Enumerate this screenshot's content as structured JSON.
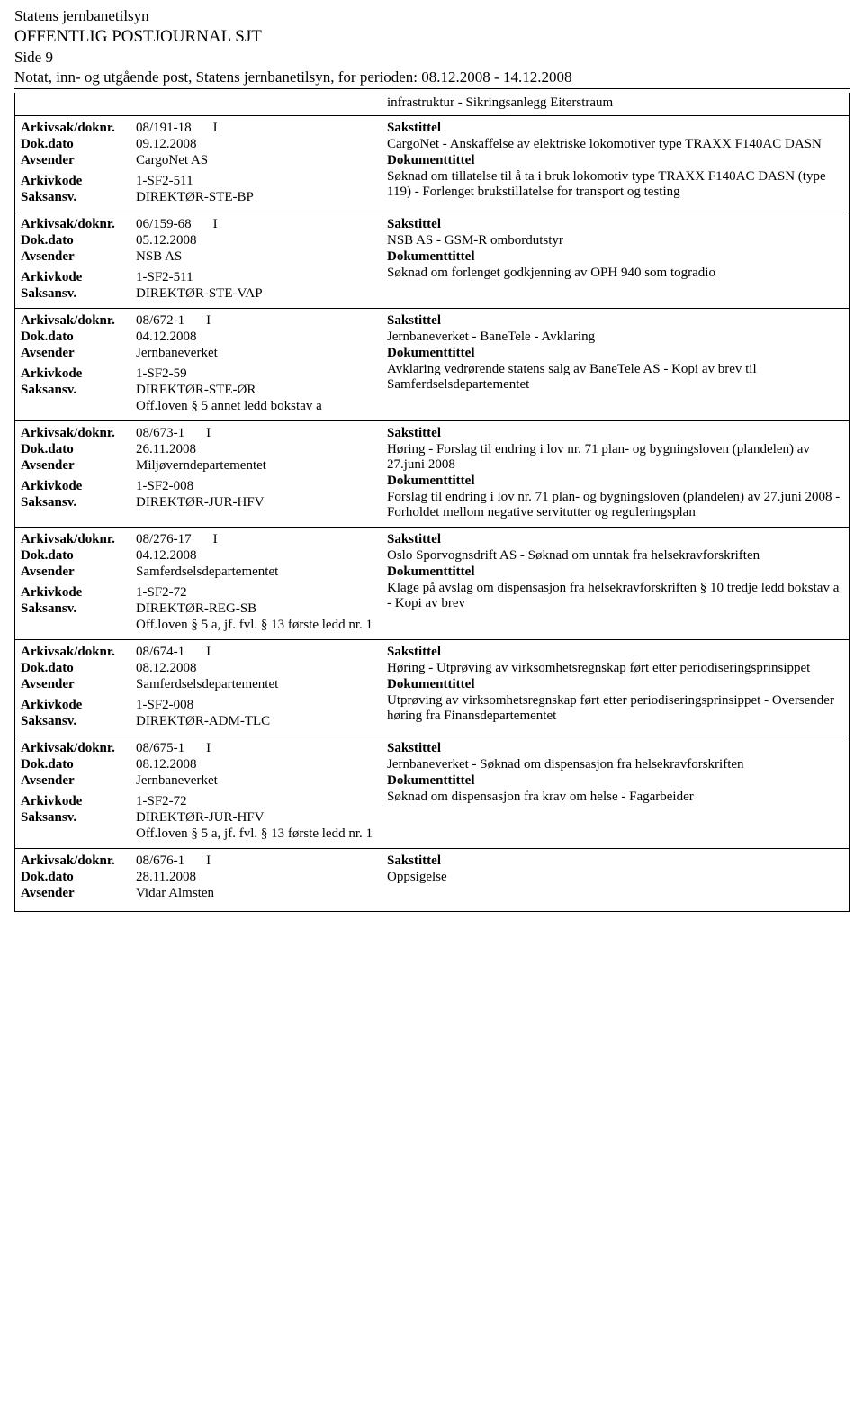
{
  "header": {
    "line1": "Statens jernbanetilsyn",
    "line2": "OFFENTLIG POSTJOURNAL SJT",
    "line3": "Side 9",
    "line4": "Notat, inn- og utgående post, Statens jernbanetilsyn, for perioden: 08.12.2008 - 14.12.2008"
  },
  "labels": {
    "arkivsak": "Arkivsak/doknr.",
    "dokdato": "Dok.dato",
    "avsender": "Avsender",
    "arkivkode": "Arkivkode",
    "saksansv": "Saksansv.",
    "sakstittel": "Sakstittel",
    "dokumenttittel": "Dokumenttittel"
  },
  "carryover": "infrastruktur - Sikringsanlegg Eiterstraum",
  "records": [
    {
      "arkivsak": "08/191-18",
      "marker": "I",
      "dokdato": "09.12.2008",
      "avsender": "CargoNet AS",
      "arkivkode": "1-SF2-511",
      "saksansv": "DIREKTØR-STE-BP",
      "saksansv_extra": "",
      "sakstittel": "CargoNet - Anskaffelse av elektriske lokomotiver type TRAXX F140AC DASN",
      "dokumenttittel": "Søknad om tillatelse til å ta i bruk lokomotiv type TRAXX F140AC DASN (type 119) - Forlenget brukstillatelse for transport og testing"
    },
    {
      "arkivsak": "06/159-68",
      "marker": "I",
      "dokdato": "05.12.2008",
      "avsender": "NSB AS",
      "arkivkode": "1-SF2-511",
      "saksansv": "DIREKTØR-STE-VAP",
      "saksansv_extra": "",
      "sakstittel": "NSB AS - GSM-R ombordutstyr",
      "dokumenttittel": "Søknad om forlenget godkjenning av OPH 940 som togradio"
    },
    {
      "arkivsak": "08/672-1",
      "marker": "I",
      "dokdato": "04.12.2008",
      "avsender": "Jernbaneverket",
      "arkivkode": "1-SF2-59",
      "saksansv": "DIREKTØR-STE-ØR",
      "saksansv_extra": "Off.loven § 5 annet ledd bokstav a",
      "sakstittel": "Jernbaneverket - BaneTele - Avklaring",
      "dokumenttittel": "Avklaring vedrørende statens salg av BaneTele AS - Kopi av brev til Samferdselsdepartementet"
    },
    {
      "arkivsak": "08/673-1",
      "marker": "I",
      "dokdato": "26.11.2008",
      "avsender": "Miljøverndepartementet",
      "arkivkode": "1-SF2-008",
      "saksansv": "DIREKTØR-JUR-HFV",
      "saksansv_extra": "",
      "sakstittel": "Høring - Forslag til endring i lov nr. 71 plan- og bygningsloven (plandelen) av 27.juni 2008",
      "dokumenttittel": "Forslag til endring i lov nr. 71 plan- og bygningsloven (plandelen) av 27.juni 2008 - Forholdet mellom negative servitutter og reguleringsplan"
    },
    {
      "arkivsak": "08/276-17",
      "marker": "I",
      "dokdato": "04.12.2008",
      "avsender": "Samferdselsdepartementet",
      "arkivkode": "1-SF2-72",
      "saksansv": "DIREKTØR-REG-SB",
      "saksansv_extra": "Off.loven § 5 a, jf. fvl. § 13 første ledd nr. 1",
      "sakstittel": "Oslo Sporvognsdrift AS - Søknad om unntak fra helsekravforskriften",
      "dokumenttittel": "Klage på avslag om dispensasjon fra helsekravforskriften § 10 tredje ledd bokstav a - Kopi av brev"
    },
    {
      "arkivsak": "08/674-1",
      "marker": "I",
      "dokdato": "08.12.2008",
      "avsender": "Samferdselsdepartementet",
      "arkivkode": "1-SF2-008",
      "saksansv": "DIREKTØR-ADM-TLC",
      "saksansv_extra": "",
      "sakstittel": "Høring - Utprøving av virksomhetsregnskap ført etter periodiseringsprinsippet",
      "dokumenttittel": "Utprøving av virksomhetsregnskap ført etter periodiseringsprinsippet - Oversender høring fra Finansdepartementet"
    },
    {
      "arkivsak": "08/675-1",
      "marker": "I",
      "dokdato": "08.12.2008",
      "avsender": "Jernbaneverket",
      "arkivkode": "1-SF2-72",
      "saksansv": "DIREKTØR-JUR-HFV",
      "saksansv_extra": "Off.loven § 5 a, jf. fvl. § 13 første ledd nr. 1",
      "sakstittel": "Jernbaneverket - Søknad om dispensasjon fra helsekravforskriften",
      "dokumenttittel": "Søknad om dispensasjon fra krav om helse - Fagarbeider"
    },
    {
      "arkivsak": "08/676-1",
      "marker": "I",
      "dokdato": "28.11.2008",
      "avsender": "Vidar Almsten",
      "arkivkode": "",
      "saksansv": "",
      "saksansv_extra": "",
      "sakstittel": "Oppsigelse",
      "dokumenttittel": ""
    }
  ]
}
